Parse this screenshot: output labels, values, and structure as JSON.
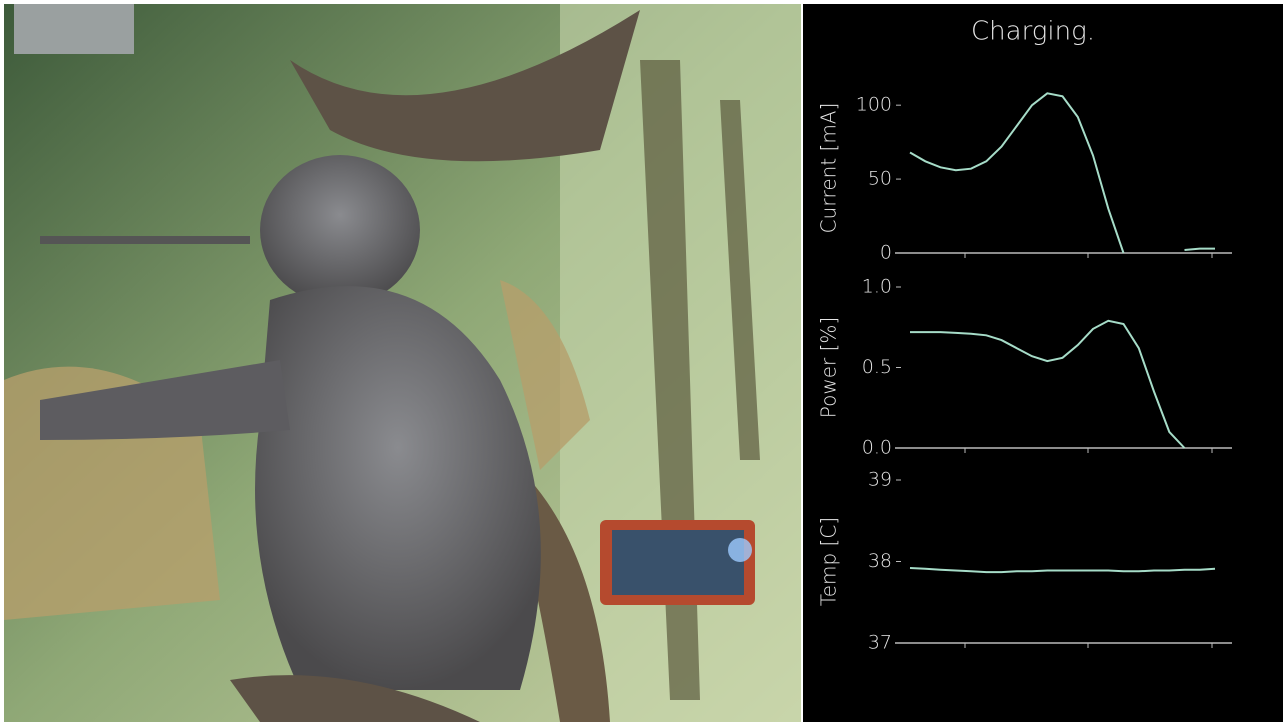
{
  "title": "Charging.",
  "chart_data": [
    {
      "type": "line",
      "ylabel": "Current [mA]",
      "ylim": [
        0,
        115
      ],
      "yticks": [
        0,
        50,
        100
      ],
      "color": "#a6dcc8",
      "series": [
        {
          "values": [
            68,
            62,
            58,
            56,
            57,
            62,
            72,
            86,
            100,
            108,
            106,
            92,
            66,
            30,
            0,
            null,
            null,
            null,
            2,
            3,
            3
          ]
        }
      ]
    },
    {
      "type": "line",
      "ylabel": "Power [%]",
      "ylim": [
        0,
        1
      ],
      "yticks": [
        {
          "value": 0,
          "label": "0.0"
        },
        0.5,
        {
          "value": 1,
          "label": "1.0"
        }
      ],
      "color": "#a6dcc8",
      "series": [
        {
          "values": [
            0.72,
            0.72,
            0.72,
            0.715,
            0.71,
            0.7,
            0.67,
            0.62,
            0.57,
            0.54,
            0.56,
            0.64,
            0.74,
            0.79,
            0.77,
            0.62,
            0.35,
            0.1,
            0,
            null,
            null
          ]
        }
      ]
    },
    {
      "type": "line",
      "ylabel": "Temp [C]",
      "ylim": [
        37,
        39
      ],
      "yticks": [
        37,
        38,
        39
      ],
      "color": "#a6dcc8",
      "series": [
        {
          "values": [
            37.92,
            37.91,
            37.9,
            37.89,
            37.88,
            37.87,
            37.87,
            37.88,
            37.88,
            37.89,
            37.89,
            37.89,
            37.89,
            37.89,
            37.88,
            37.88,
            37.89,
            37.89,
            37.9,
            37.9,
            37.91
          ]
        }
      ]
    }
  ]
}
